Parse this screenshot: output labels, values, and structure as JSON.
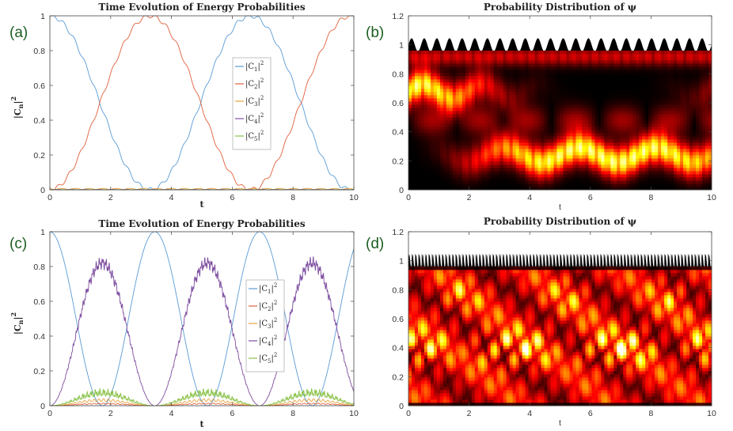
{
  "chart_data": [
    {
      "panel_label": "(a)",
      "type": "line",
      "title": "Time Evolution of Energy Probabilities",
      "xlabel": "t",
      "ylabel_main": "|C",
      "ylabel_sub": "n",
      "ylabel_sup": "2",
      "xlim": [
        0,
        10
      ],
      "ylim": [
        0,
        1
      ],
      "xticks": [
        "0",
        "2",
        "4",
        "6",
        "8",
        "10"
      ],
      "yticks": [
        "0",
        "0.2",
        "0.4",
        "0.6",
        "0.8",
        "1"
      ],
      "legend_position": "center-right",
      "series": [
        {
          "name": "|C1|2",
          "label_main": "|C",
          "label_sub": "1",
          "label_sup": "2",
          "color": "#5b9bd5",
          "model": "cos2",
          "period": 6.6,
          "ripple": 0.012,
          "ripple_freq": 2.8
        },
        {
          "name": "|C2|2",
          "label_main": "|C",
          "label_sub": "2",
          "label_sup": "2",
          "color": "#e0603c",
          "model": "sin2",
          "period": 6.6,
          "ripple": 0.012,
          "ripple_freq": 2.8
        },
        {
          "name": "|C3|2",
          "label_main": "|C",
          "label_sub": "3",
          "label_sup": "2",
          "color": "#e6a23c",
          "model": "small",
          "amp": 0.008
        },
        {
          "name": "|C4|2",
          "label_main": "|C",
          "label_sub": "4",
          "label_sup": "2",
          "color": "#7e4ea0",
          "model": "small",
          "amp": 0.002
        },
        {
          "name": "|C5|2",
          "label_main": "|C",
          "label_sub": "5",
          "label_sup": "2",
          "color": "#8bc34a",
          "model": "small",
          "amp": 0.001
        }
      ]
    },
    {
      "panel_label": "(b)",
      "type": "heatmap",
      "title": "Probability Distribution of ψ",
      "xlabel": "t",
      "xlim": [
        0,
        10
      ],
      "ylim": [
        0,
        1.2
      ],
      "xticks": [
        "0",
        "2",
        "4",
        "6",
        "8",
        "10"
      ],
      "yticks": [
        "0",
        "0.2",
        "0.4",
        "0.6",
        "0.8",
        "1",
        "1.2"
      ],
      "colormap": "hot",
      "wave_count": 24,
      "period": 6.6
    },
    {
      "panel_label": "(c)",
      "type": "line",
      "title": "Time Evolution of Energy Probabilities",
      "xlabel": "t",
      "ylabel_main": "|C",
      "ylabel_sub": "n",
      "ylabel_sup": "2",
      "xlim": [
        0,
        10
      ],
      "ylim": [
        0,
        1
      ],
      "xticks": [
        "0",
        "2",
        "4",
        "6",
        "8",
        "10"
      ],
      "yticks": [
        "0",
        "0.2",
        "0.4",
        "0.6",
        "0.8",
        "1"
      ],
      "legend_position": "center-right",
      "series": [
        {
          "name": "|C1|2",
          "label_main": "|C",
          "label_sub": "1",
          "label_sup": "2",
          "color": "#5b9bd5",
          "model": "cos2",
          "period": 3.45,
          "ripple": 0.0,
          "ripple_freq": 0
        },
        {
          "name": "|C2|2",
          "label_main": "|C",
          "label_sub": "2",
          "label_sup": "2",
          "color": "#e0603c",
          "model": "bump",
          "period": 3.45,
          "amp": 0.015
        },
        {
          "name": "|C3|2",
          "label_main": "|C",
          "label_sub": "3",
          "label_sup": "2",
          "color": "#e6a23c",
          "model": "bump",
          "period": 3.45,
          "amp": 0.04
        },
        {
          "name": "|C4|2",
          "label_main": "|C",
          "label_sub": "4",
          "label_sup": "2",
          "color": "#7e4ea0",
          "model": "sin2noisy",
          "period": 3.45,
          "amp": 0.82,
          "noise": 0.04
        },
        {
          "name": "|C5|2",
          "label_main": "|C",
          "label_sub": "5",
          "label_sup": "2",
          "color": "#8bc34a",
          "model": "bumpnoisy",
          "period": 3.45,
          "amp": 0.1,
          "noise": 0.03
        }
      ]
    },
    {
      "panel_label": "(d)",
      "type": "heatmap",
      "title": "Probability Distribution of ψ",
      "xlabel": "t",
      "xlim": [
        0,
        10
      ],
      "ylim": [
        0,
        1.2
      ],
      "xticks": [
        "0",
        "2",
        "4",
        "6",
        "8",
        "10"
      ],
      "yticks": [
        "0",
        "0.2",
        "0.4",
        "0.6",
        "0.8",
        "1",
        "1.2"
      ],
      "colormap": "hot",
      "wave_count": 90,
      "period": 3.45
    }
  ]
}
